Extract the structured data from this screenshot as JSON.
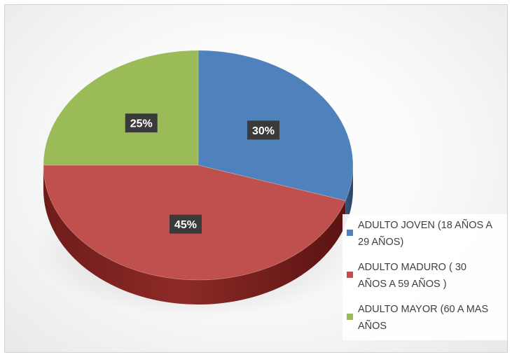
{
  "chart_data": {
    "type": "pie",
    "title": "",
    "categories": [
      "ADULTO JOVEN (18 AÑOS A 29 AÑOS)",
      "ADULTO MADURO ( 30 AÑOS A 59 AÑOS )",
      "ADULTO MAYOR (60 A MAS AÑOS"
    ],
    "values": [
      30,
      45,
      25
    ],
    "data_labels": [
      "30%",
      "45%",
      "25%"
    ],
    "colors": [
      "#4f81bd",
      "#c0504d",
      "#9bbb59"
    ],
    "legend_position": "bottom-right",
    "style": "3d"
  },
  "legend": {
    "items": [
      {
        "line1": "ADULTO JOVEN (18 AÑOS A",
        "line2": "29 AÑOS)",
        "color": "#4f81bd"
      },
      {
        "line1": "ADULTO MADURO ( 30",
        "line2": "AÑOS A 59 AÑOS )",
        "color": "#c0504d"
      },
      {
        "line1": "ADULTO MAYOR (60 A MAS",
        "line2": "AÑOS",
        "color": "#9bbb59"
      }
    ]
  }
}
